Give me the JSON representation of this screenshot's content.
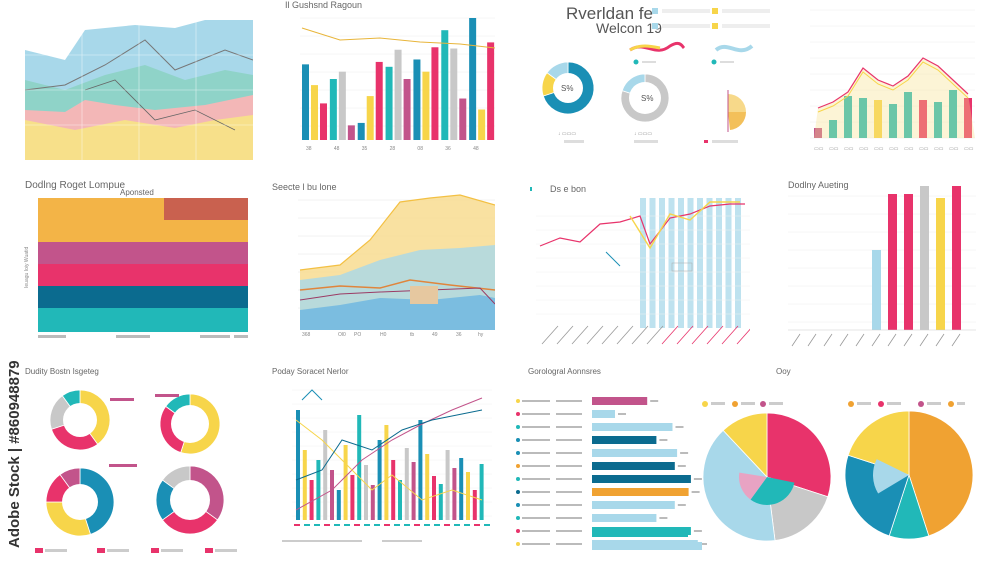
{
  "watermark": "Adobe Stock | #860948879",
  "titles": {
    "top_mid_bar": "Il Gushsnd Ragoun",
    "report": "Rverldan fe",
    "report_sub": "Welcon 19",
    "stack_bar": "Dodlng Roget Lompue",
    "stack_bar_label": "Aponsted",
    "area2": "Seecte l bu lone",
    "line_bar": "Ds e bon",
    "tall_bars": "Dodlny Aueting",
    "donuts": "Dudity Bostn Isgeteg",
    "dense": "Poday Soracet Nerlor",
    "hbar": "Gorologral Aonnsres",
    "pies": "Ooy"
  },
  "colors": {
    "yellow": "#f7d54a",
    "blue": "#1a8fb5",
    "teal": "#21b8b8",
    "pink": "#e8336b",
    "magenta": "#c2548b",
    "orange": "#f0a232",
    "light_blue": "#a8d8ea",
    "grey": "#c8c8c8",
    "dark_blue": "#0b6b8f"
  },
  "chart_data": [
    {
      "id": "top-mid-bar",
      "type": "bar",
      "title": "Il Gushsnd Ragoun",
      "series": [
        {
          "values": [
            62,
            50,
            14,
            60,
            66,
            90,
            100
          ]
        },
        {
          "values": [
            45,
            56,
            36,
            74,
            56,
            75,
            25
          ]
        },
        {
          "values": [
            30,
            12,
            64,
            50,
            76,
            34,
            80
          ]
        }
      ]
    },
    {
      "id": "top-right-combo",
      "type": "bar",
      "values": [
        10,
        18,
        42,
        40,
        38,
        34,
        46,
        38,
        36,
        48,
        40
      ],
      "line": [
        30,
        36,
        46,
        70,
        58,
        52,
        62,
        80,
        72,
        58,
        44
      ]
    },
    {
      "id": "tall-bars",
      "type": "bar",
      "title": "Dodlny Aueting",
      "values": [
        0,
        0,
        0,
        0,
        0,
        40,
        68,
        68,
        74,
        66,
        72
      ]
    },
    {
      "id": "donut-small-1",
      "type": "pie",
      "values": [
        70,
        15,
        15
      ],
      "center_label": "S%"
    },
    {
      "id": "donut-small-2",
      "type": "pie",
      "values": [
        80,
        20
      ],
      "center_label": "S%"
    },
    {
      "id": "hbar",
      "type": "bar",
      "title": "Gorologral Aonnsres",
      "values": [
        48,
        20,
        70,
        56,
        74,
        72,
        86,
        84,
        72,
        56,
        86,
        92
      ]
    },
    {
      "id": "pie-left",
      "type": "pie",
      "values": [
        30,
        18,
        40,
        12
      ]
    },
    {
      "id": "pie-right",
      "type": "pie",
      "values": [
        45,
        10,
        25,
        20
      ]
    }
  ]
}
